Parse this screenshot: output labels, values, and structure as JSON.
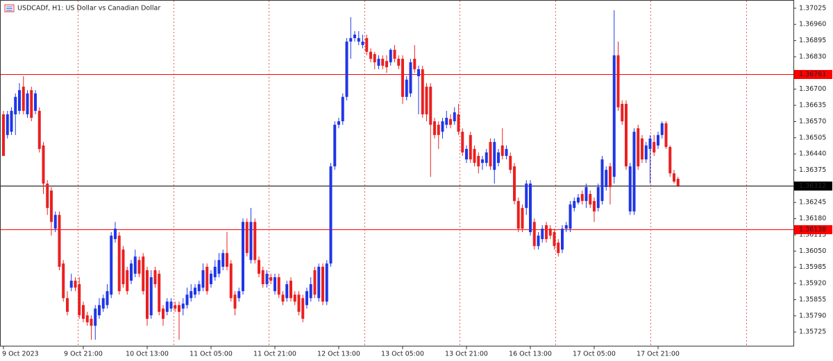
{
  "chart_data": {
    "type": "candlestick",
    "title": "USDCADf, H1:  US Dollar vs Canadian Dollar",
    "up_color": "#1f36e6",
    "down_color": "#ea2020",
    "ylim": [
      1.35667,
      1.37058
    ],
    "yticks": [
      1.37025,
      {
        "value": 1.3696,
        "label": "1.36960"
      },
      1.36895,
      {
        "value": 1.3683,
        "label": "1.36830"
      },
      {
        "value": 1.367,
        "label": "1.36700"
      },
      1.36635,
      {
        "value": 1.3657,
        "label": "1.36570"
      },
      1.36505,
      {
        "value": 1.3644,
        "label": "1.36440"
      },
      1.36375,
      1.36245,
      {
        "value": 1.3618,
        "label": "1.36180"
      },
      1.36115,
      {
        "value": 1.3605,
        "label": "1.36050"
      },
      1.35985,
      {
        "value": 1.3592,
        "label": "1.35920"
      },
      1.35855,
      {
        "value": 1.3579,
        "label": "1.35790"
      },
      1.35725
    ],
    "hlines": [
      {
        "value": 1.36761,
        "color": "#ff0000"
      },
      {
        "value": 1.36312,
        "color": "#000000"
      },
      {
        "value": 1.36138,
        "color": "#ff0000"
      }
    ],
    "categories": [
      "9 Oct 2023",
      null,
      null,
      null,
      null,
      null,
      null,
      null,
      null,
      null,
      null,
      null,
      null,
      null,
      null,
      null,
      null,
      null,
      null,
      null,
      "9 Oct 21:00",
      null,
      null,
      null,
      null,
      null,
      null,
      null,
      null,
      null,
      null,
      null,
      null,
      null,
      null,
      null,
      "10 Oct 13:00",
      null,
      null,
      null,
      null,
      null,
      null,
      null,
      null,
      null,
      null,
      null,
      null,
      null,
      null,
      null,
      "11 Oct 05:00",
      null,
      null,
      null,
      null,
      null,
      null,
      null,
      null,
      null,
      null,
      null,
      null,
      null,
      null,
      null,
      "11 Oct 21:00",
      null,
      null,
      null,
      null,
      null,
      null,
      null,
      null,
      null,
      null,
      null,
      null,
      null,
      null,
      null,
      "12 Oct 13:00",
      null,
      null,
      null,
      null,
      null,
      null,
      null,
      null,
      null,
      null,
      null,
      null,
      null,
      null,
      null,
      "13 Oct 05:00",
      null,
      null,
      null,
      null,
      null,
      null,
      null,
      null,
      null,
      null,
      null,
      null,
      null,
      null,
      null,
      "13 Oct 21:00",
      null,
      null,
      null,
      null,
      null,
      null,
      null,
      null,
      null,
      null,
      null,
      null,
      null,
      null,
      null,
      "16 Oct 13:00",
      null,
      null,
      null,
      null,
      null,
      null,
      null,
      null,
      null,
      null,
      null,
      null,
      null,
      null,
      null,
      "17 Oct 05:00",
      null,
      null,
      null,
      null,
      null,
      null,
      null,
      null,
      null,
      null,
      null,
      null,
      null,
      null,
      null,
      "17 Oct 21:00",
      null,
      null,
      null,
      null,
      null
    ],
    "open": [
      1.36599,
      1.36516,
      1.36529,
      1.36599,
      1.36613,
      1.3671,
      1.36599,
      1.36696,
      1.36613,
      1.36613,
      1.36474,
      1.36321,
      1.36293,
      1.3614,
      1.36195,
      1.36,
      1.35861,
      1.35903,
      1.35931,
      1.35917,
      1.35833,
      1.35792,
      1.35778,
      1.3575,
      1.35792,
      1.35819,
      1.35833,
      1.35875,
      1.36098,
      1.36112,
      1.36056,
      1.35973,
      1.35931,
      1.35959,
      1.36014,
      1.36028,
      1.35973,
      1.35792,
      1.35973,
      1.35959,
      1.35819,
      1.35806,
      1.35819,
      1.35833,
      1.35833,
      1.35819,
      1.35833,
      1.35861,
      1.35875,
      1.35889,
      1.35903,
      1.35987,
      1.35917,
      1.35945,
      1.35959,
      1.35987,
      1.36042,
      1.36,
      1.35875,
      1.35861,
      1.35889,
      1.36167,
      1.36014,
      1.36167,
      1.36014,
      1.35973,
      1.35917,
      1.35945,
      1.35889,
      1.35945,
      1.35875,
      1.35861,
      1.35931,
      1.35875,
      1.35875,
      1.35861,
      1.35833,
      1.35861,
      1.35973,
      1.35861,
      1.35987,
      1.35847,
      1.36,
      1.3639,
      1.36557,
      1.36571,
      1.36669,
      1.36891,
      1.36905,
      1.36891,
      1.36877,
      1.36905,
      1.3685,
      1.36841,
      1.36794,
      1.36822,
      1.36813,
      1.36808,
      1.36858,
      1.36822,
      1.36822,
      1.36669,
      1.36683,
      1.36822,
      1.36752,
      1.3678,
      1.3671,
      1.3671,
      1.36571,
      1.36557,
      1.36529,
      1.36557,
      1.3658,
      1.36571,
      1.36599,
      1.36529,
      1.36418,
      1.36516,
      1.3646,
      1.36432,
      1.36404,
      1.36404,
      1.36488,
      1.36376,
      1.36404,
      1.36474,
      1.36432,
      1.36432,
      1.3639,
      1.36251,
      1.36223,
      1.36223,
      1.36126,
      1.36167,
      1.3607,
      1.36098,
      1.36154,
      1.3614,
      1.36126,
      1.36084,
      1.36056,
      1.3614,
      1.3614,
      1.36223,
      1.36245,
      1.36279,
      1.36251,
      1.36279,
      1.36251,
      1.36223,
      1.36251,
      1.36307,
      1.3639,
      1.36348,
      1.36836,
      1.36641,
      1.36641,
      1.36209,
      1.36209,
      1.36543,
      1.36502,
      1.36418,
      1.3646,
      1.36488,
      1.36474,
      1.36516,
      1.36563,
      1.36468,
      1.36362,
      1.3634
    ],
    "high": [
      1.36613,
      1.36613,
      1.36627,
      1.36683,
      1.36724,
      1.36752,
      1.36696,
      1.3671,
      1.36696,
      1.36627,
      1.36488,
      1.36335,
      1.36307,
      1.36209,
      1.36209,
      1.36014,
      1.35889,
      1.35959,
      1.35945,
      1.35945,
      1.35847,
      1.35806,
      1.35792,
      1.35833,
      1.35861,
      1.35875,
      1.35917,
      1.36126,
      1.36167,
      1.36126,
      1.3607,
      1.35987,
      1.36014,
      1.36056,
      1.36028,
      1.36042,
      1.35987,
      1.35973,
      1.35987,
      1.35973,
      1.35833,
      1.35861,
      1.35861,
      1.35847,
      1.35847,
      1.35861,
      1.35903,
      1.35917,
      1.35917,
      1.35931,
      1.36,
      1.36,
      1.35973,
      1.36014,
      1.36042,
      1.36056,
      1.36126,
      1.36014,
      1.35889,
      1.35903,
      1.36181,
      1.36181,
      1.36223,
      1.36181,
      1.36028,
      1.35987,
      1.35973,
      1.35959,
      1.35959,
      1.35959,
      1.35889,
      1.35931,
      1.35945,
      1.35889,
      1.35889,
      1.35875,
      1.35903,
      1.35945,
      1.35987,
      1.36,
      1.36,
      1.36014,
      1.36404,
      1.36571,
      1.36585,
      1.36683,
      1.36905,
      1.36989,
      1.36933,
      1.36933,
      1.36919,
      1.36919,
      1.36864,
      1.3685,
      1.36836,
      1.36836,
      1.36836,
      1.36864,
      1.36877,
      1.36836,
      1.36836,
      1.36752,
      1.36822,
      1.36877,
      1.36794,
      1.36794,
      1.36724,
      1.36724,
      1.36585,
      1.36571,
      1.36585,
      1.36613,
      1.36599,
      1.36627,
      1.36641,
      1.36543,
      1.36474,
      1.36529,
      1.36474,
      1.36446,
      1.36432,
      1.3646,
      1.36502,
      1.36502,
      1.3646,
      1.36543,
      1.36474,
      1.36446,
      1.36404,
      1.36265,
      1.36237,
      1.36335,
      1.36335,
      1.36181,
      1.36126,
      1.36154,
      1.36167,
      1.36154,
      1.3614,
      1.36098,
      1.36154,
      1.36167,
      1.36251,
      1.36265,
      1.36279,
      1.36293,
      1.36321,
      1.36293,
      1.36265,
      1.36321,
      1.36432,
      1.3639,
      1.36404,
      1.37017,
      1.36891,
      1.36655,
      1.36655,
      1.36404,
      1.36543,
      1.36557,
      1.36516,
      1.36488,
      1.36516,
      1.36516,
      1.36529,
      1.36571,
      1.36571,
      1.36474,
      1.36376,
      1.36348
    ],
    "low": [
      1.36432,
      1.36502,
      1.36516,
      1.36516,
      1.36599,
      1.36599,
      1.36585,
      1.36571,
      1.36599,
      1.36446,
      1.36279,
      1.36195,
      1.36112,
      1.36126,
      1.35973,
      1.35847,
      1.35792,
      1.35889,
      1.35889,
      1.35778,
      1.35764,
      1.3575,
      1.35694,
      1.35694,
      1.35778,
      1.35806,
      1.35819,
      1.35861,
      1.36084,
      1.35875,
      1.35903,
      1.35875,
      1.35917,
      1.35945,
      1.35945,
      1.35875,
      1.3575,
      1.35778,
      1.35903,
      1.35792,
      1.3575,
      1.35792,
      1.35806,
      1.35806,
      1.35694,
      1.35792,
      1.35819,
      1.35847,
      1.35861,
      1.35875,
      1.35889,
      1.35875,
      1.35903,
      1.35931,
      1.35945,
      1.35973,
      1.35973,
      1.35847,
      1.35792,
      1.35847,
      1.35875,
      1.36028,
      1.36,
      1.36,
      1.35945,
      1.35903,
      1.35903,
      1.35917,
      1.35875,
      1.35861,
      1.35833,
      1.35847,
      1.35847,
      1.35833,
      1.35792,
      1.35764,
      1.35819,
      1.35847,
      1.35861,
      1.35847,
      1.35833,
      1.35833,
      1.35987,
      1.36376,
      1.36543,
      1.36557,
      1.36655,
      1.36822,
      1.36891,
      1.36877,
      1.36864,
      1.36836,
      1.36808,
      1.3678,
      1.3678,
      1.3678,
      1.36766,
      1.36794,
      1.36808,
      1.3678,
      1.36641,
      1.36655,
      1.36669,
      1.36766,
      1.36599,
      1.36585,
      1.36571,
      1.36348,
      1.36502,
      1.3646,
      1.36502,
      1.36543,
      1.36543,
      1.36557,
      1.36516,
      1.36432,
      1.36404,
      1.36404,
      1.3639,
      1.36362,
      1.36376,
      1.3639,
      1.36376,
      1.36321,
      1.3639,
      1.36418,
      1.36418,
      1.36362,
      1.36237,
      1.36126,
      1.36126,
      1.36195,
      1.36112,
      1.36056,
      1.36056,
      1.36084,
      1.36084,
      1.36098,
      1.36056,
      1.36028,
      1.36042,
      1.36126,
      1.36126,
      1.36209,
      1.36237,
      1.36237,
      1.36223,
      1.36223,
      1.36167,
      1.36209,
      1.36237,
      1.36293,
      1.36237,
      1.36321,
      1.36613,
      1.36557,
      1.36376,
      1.36195,
      1.36195,
      1.36376,
      1.36404,
      1.36404,
      1.36321,
      1.36432,
      1.3646,
      1.36502,
      1.3646,
      1.36348,
      1.36321,
      1.36307
    ],
    "close": [
      1.36432,
      1.36599,
      1.36613,
      1.36669,
      1.36696,
      1.36613,
      1.36683,
      1.36585,
      1.36683,
      1.3646,
      1.36321,
      1.36223,
      1.36167,
      1.36195,
      1.35987,
      1.35861,
      1.35806,
      1.35931,
      1.35903,
      1.35792,
      1.35778,
      1.35764,
      1.3575,
      1.35819,
      1.35833,
      1.35861,
      1.35889,
      1.36112,
      1.3614,
      1.35889,
      1.35917,
      1.35889,
      1.36,
      1.36028,
      1.35959,
      1.35889,
      1.35778,
      1.35945,
      1.35917,
      1.35806,
      1.35778,
      1.35847,
      1.35847,
      1.35819,
      1.35806,
      1.35839,
      1.35875,
      1.35889,
      1.35903,
      1.35917,
      1.35973,
      1.35889,
      1.35959,
      1.35987,
      1.36014,
      1.36042,
      1.35987,
      1.35861,
      1.35819,
      1.35889,
      1.36167,
      1.36042,
      1.36167,
      1.36014,
      1.35959,
      1.35917,
      1.35959,
      1.35931,
      1.35945,
      1.35875,
      1.35847,
      1.35917,
      1.35861,
      1.35847,
      1.35806,
      1.35778,
      1.35889,
      1.35917,
      1.35875,
      1.35987,
      1.35847,
      1.36,
      1.3639,
      1.36557,
      1.36571,
      1.36669,
      1.36891,
      1.36905,
      1.36919,
      1.36905,
      1.36891,
      1.3685,
      1.36822,
      1.36808,
      1.36822,
      1.36794,
      1.36788,
      1.36858,
      1.36822,
      1.36794,
      1.36669,
      1.36738,
      1.36808,
      1.3678,
      1.3678,
      1.36599,
      1.36599,
      1.36557,
      1.36516,
      1.36516,
      1.36571,
      1.36585,
      1.36557,
      1.36607,
      1.36529,
      1.36446,
      1.3646,
      1.36418,
      1.36404,
      1.3639,
      1.36418,
      1.36446,
      1.3639,
      1.36488,
      1.36446,
      1.36432,
      1.3646,
      1.36376,
      1.36251,
      1.3614,
      1.3614,
      1.36321,
      1.36321,
      1.3607,
      1.36112,
      1.3614,
      1.36098,
      1.36112,
      1.3607,
      1.36042,
      1.3614,
      1.36154,
      1.36237,
      1.36251,
      1.36265,
      1.36251,
      1.36307,
      1.36237,
      1.36209,
      1.36307,
      1.36418,
      1.36376,
      1.36307,
      1.36836,
      1.36627,
      1.36571,
      1.3639,
      1.3639,
      1.36529,
      1.3639,
      1.36418,
      1.36474,
      1.36502,
      1.36446,
      1.36516,
      1.36563,
      1.36468,
      1.36362,
      1.36329,
      1.36312
    ]
  }
}
